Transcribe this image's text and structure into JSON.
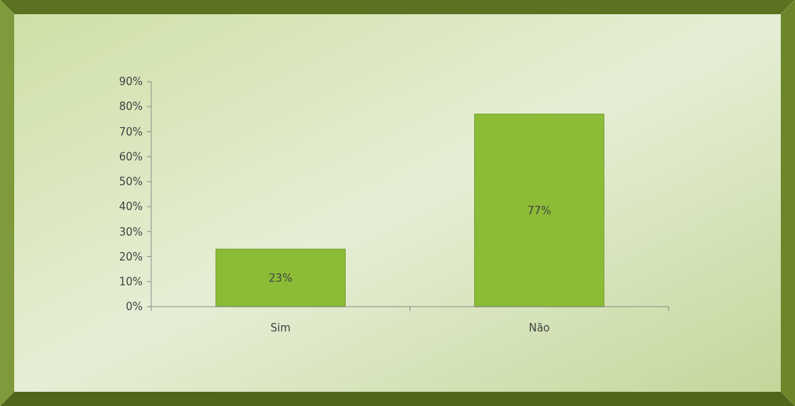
{
  "chart_data": {
    "type": "bar",
    "categories": [
      "Sim",
      "Não"
    ],
    "values": [
      23,
      77
    ],
    "value_labels": [
      "23%",
      "77%"
    ],
    "color": "#8cbc36",
    "ylim": [
      0,
      90
    ],
    "yticks": [
      {
        "value": 0,
        "label": "0%"
      },
      {
        "value": 10,
        "label": "10%"
      },
      {
        "value": 20,
        "label": "20%"
      },
      {
        "value": 30,
        "label": "30%"
      },
      {
        "value": 40,
        "label": "40%"
      },
      {
        "value": 50,
        "label": "50%"
      },
      {
        "value": 60,
        "label": "60%"
      },
      {
        "value": 70,
        "label": "70%"
      },
      {
        "value": 80,
        "label": "80%"
      },
      {
        "value": 90,
        "label": "90%"
      }
    ],
    "grid": false
  }
}
